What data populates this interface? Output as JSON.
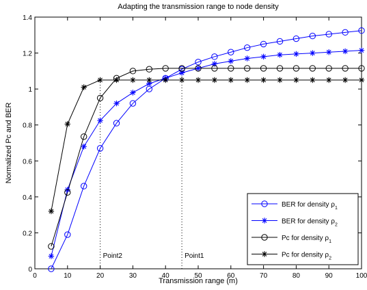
{
  "chart_data": {
    "type": "line",
    "title": "Adapting the transmission range to  node density",
    "xlabel": "Transmission range (m)",
    "ylabel": "Normalized Pc and BER",
    "xlim": [
      0,
      100
    ],
    "ylim": [
      0,
      1.4
    ],
    "xticks": [
      0,
      10,
      20,
      30,
      40,
      50,
      60,
      70,
      80,
      90,
      100
    ],
    "xtick_labels": [
      "0",
      "10",
      "20",
      "30",
      "40",
      "50",
      "60",
      "70",
      "80",
      "90",
      "100"
    ],
    "yticks": [
      0,
      0.2,
      0.4,
      0.6,
      0.8,
      1.0,
      1.2,
      1.4
    ],
    "ytick_labels": [
      "0",
      "0.2",
      "0.4",
      "0.6",
      "0.8",
      "1",
      "1.2",
      "1.4"
    ],
    "grid": false,
    "legend_position": "lower-right",
    "x": [
      5,
      10,
      15,
      20,
      25,
      30,
      35,
      40,
      45,
      50,
      55,
      60,
      65,
      70,
      75,
      80,
      85,
      90,
      95,
      100
    ],
    "series": [
      {
        "name": "BER for density ρ",
        "subscript": "1",
        "color": "#0000ff",
        "marker": "circle",
        "values": [
          0.0,
          0.19,
          0.46,
          0.67,
          0.81,
          0.92,
          1.0,
          1.06,
          1.11,
          1.15,
          1.18,
          1.205,
          1.23,
          1.25,
          1.265,
          1.28,
          1.295,
          1.305,
          1.315,
          1.325
        ]
      },
      {
        "name": "BER for density ρ",
        "subscript": "2",
        "color": "#0000ff",
        "marker": "star",
        "values": [
          0.07,
          0.44,
          0.68,
          0.825,
          0.92,
          0.98,
          1.03,
          1.06,
          1.09,
          1.115,
          1.14,
          1.155,
          1.17,
          1.18,
          1.19,
          1.195,
          1.2,
          1.205,
          1.21,
          1.215
        ]
      },
      {
        "name": "Pc for density ρ",
        "subscript": "1",
        "color": "#000000",
        "marker": "circle",
        "values": [
          0.125,
          0.425,
          0.735,
          0.95,
          1.06,
          1.1,
          1.11,
          1.115,
          1.115,
          1.115,
          1.115,
          1.115,
          1.115,
          1.115,
          1.115,
          1.115,
          1.115,
          1.115,
          1.115,
          1.115
        ]
      },
      {
        "name": "Pc for density ρ",
        "subscript": "2",
        "color": "#000000",
        "marker": "star",
        "values": [
          0.32,
          0.805,
          1.01,
          1.05,
          1.05,
          1.05,
          1.05,
          1.05,
          1.05,
          1.05,
          1.05,
          1.05,
          1.05,
          1.05,
          1.05,
          1.05,
          1.05,
          1.05,
          1.05,
          1.05
        ]
      }
    ],
    "annotations": [
      {
        "text": "Point2",
        "x": 20,
        "y_from": 0,
        "y_to": 1.05,
        "style": "dotted"
      },
      {
        "text": "Point1",
        "x": 45,
        "y_from": 0,
        "y_to": 1.115,
        "style": "dotted"
      }
    ]
  }
}
